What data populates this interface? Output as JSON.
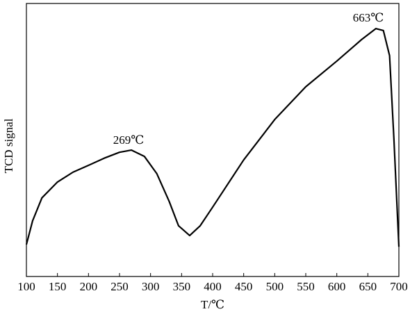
{
  "chart_data": {
    "type": "line",
    "y_label": "TCD signal",
    "x_label": "T/℃",
    "annotations": [
      "269℃",
      "663℃"
    ],
    "x": [
      100,
      110,
      125,
      150,
      175,
      200,
      225,
      250,
      269,
      290,
      310,
      330,
      345,
      363,
      380,
      400,
      450,
      500,
      550,
      600,
      640,
      663,
      675,
      685,
      692,
      700
    ],
    "series": [
      {
        "color": "#000000",
        "values": [
          11.7,
          20.4,
          28.8,
          34.6,
          38.2,
          40.7,
          43.3,
          45.5,
          46.3,
          44.0,
          37.7,
          27.5,
          18.6,
          15.0,
          18.6,
          25.4,
          42.7,
          57.5,
          69.5,
          78.9,
          86.8,
          90.8,
          90.1,
          80.9,
          50.4,
          10.9
        ]
      }
    ],
    "xlim": [
      100,
      700
    ],
    "ylim": [
      0,
      100
    ],
    "xticks": [
      100,
      150,
      200,
      250,
      300,
      350,
      400,
      450,
      500,
      550,
      600,
      650,
      700
    ]
  }
}
